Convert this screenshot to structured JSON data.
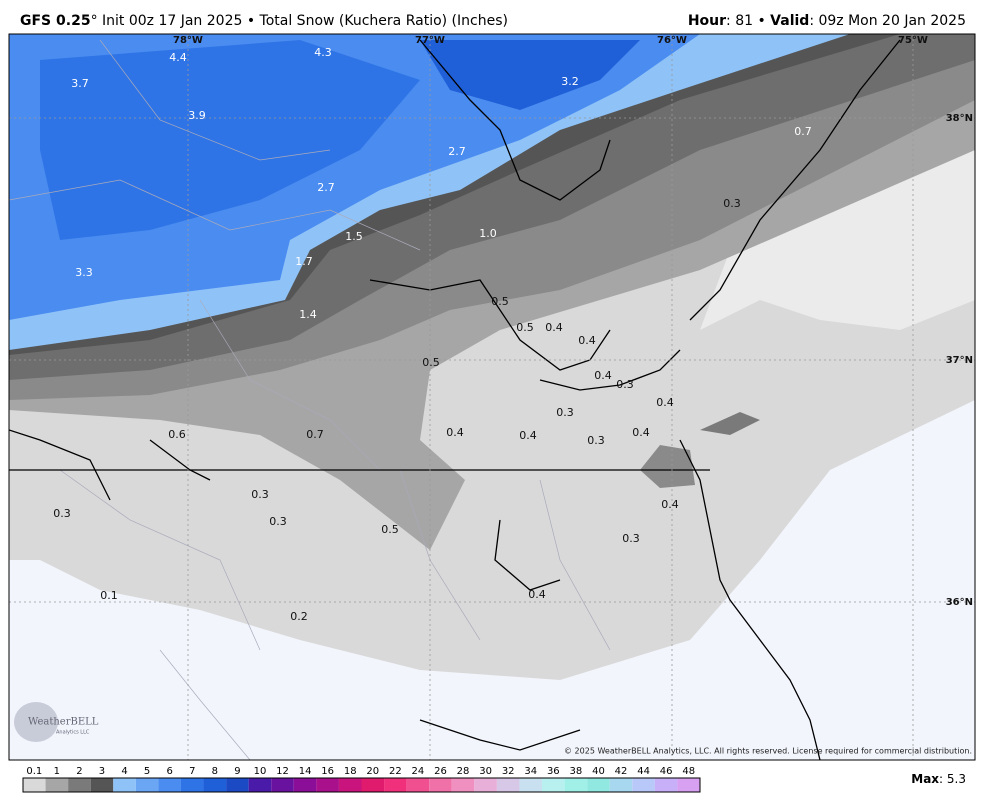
{
  "header": {
    "model": "GFS 0.25",
    "title_rest": "° Init 00z 17 Jan 2025 • Total Snow (Kuchera Ratio) (Inches)",
    "hour_label": "Hour",
    "hour_value": ": 81 • ",
    "valid_label": "Valid",
    "valid_value": ": 09z Mon 20 Jan 2025"
  },
  "map": {
    "lon_labels": [
      "78°W",
      "77°W",
      "76°W",
      "75°W"
    ],
    "lat_labels": [
      "38°N",
      "37°N",
      "36°N"
    ],
    "values": [
      "4.4",
      "4.3",
      "3.2",
      "3.7",
      "3.9",
      "2.7",
      "2.7",
      "1.5",
      "1.0",
      "1.7",
      "3.3",
      "0.5",
      "1.4",
      "0.5",
      "0.4",
      "0.4",
      "0.5",
      "0.4",
      "0.3",
      "0.4",
      "0.3",
      "0.6",
      "0.7",
      "0.4",
      "0.4",
      "0.3",
      "0.4",
      "0.7",
      "0.3",
      "0.3",
      "0.3",
      "0.3",
      "0.5",
      "0.4",
      "0.3",
      "0.1",
      "0.4",
      "0.2"
    ],
    "logo": "WeatherBELL",
    "logo_sub": "Analytics LLC",
    "copyright": "© 2025 WeatherBELL Analytics, LLC. All rights reserved. License required for commercial distribution."
  },
  "colorbar": {
    "labels": [
      "0.1",
      "1",
      "2",
      "3",
      "4",
      "5",
      "6",
      "7",
      "8",
      "9",
      "10",
      "12",
      "14",
      "16",
      "18",
      "20",
      "22",
      "24",
      "26",
      "28",
      "30",
      "32",
      "34",
      "36",
      "38",
      "40",
      "42",
      "44",
      "46",
      "48"
    ],
    "colors": [
      "#d9d9d9",
      "#a6a6a6",
      "#7a7a7a",
      "#555555",
      "#8fc3f8",
      "#6aa6f4",
      "#4a8cf0",
      "#2f74e6",
      "#1f5fd8",
      "#1c4ac4",
      "#4a1aa8",
      "#6a12a0",
      "#8a0e98",
      "#a8108c",
      "#c8147c",
      "#e01a6c",
      "#f0307a",
      "#f05090",
      "#f070a8",
      "#f090c0",
      "#e8b0d8",
      "#d8c8e8",
      "#c8e0f0",
      "#b8f0f0",
      "#a0f0e8",
      "#90e8e0",
      "#a8d8f0",
      "#b8c8f8",
      "#c8b0f8",
      "#d8a0f0"
    ],
    "max_label": "Max",
    "max_value": ": 5.3"
  }
}
